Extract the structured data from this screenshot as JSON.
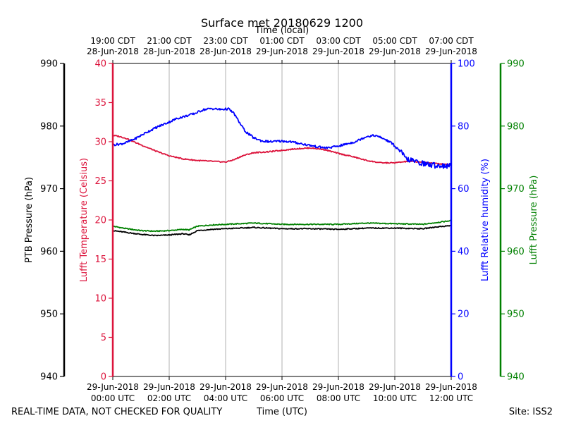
{
  "page": {
    "footer_left": "REAL-TIME DATA, NOT CHECKED FOR QUALITY",
    "footer_center": "Time (UTC)",
    "footer_right": "Site: ISS2"
  },
  "chart_data": {
    "type": "line",
    "title": "Surface met 20180629 1200",
    "top_axis_label": "Time (local)",
    "bottom_axis_label": "Time (UTC)",
    "xlim_hours": [
      0,
      12
    ],
    "x_ticks": [
      {
        "utc_line1": "29-Jun-2018",
        "utc_line2": "00:00 UTC",
        "local_line1": "19:00 CDT",
        "local_line2": "28-Jun-2018"
      },
      {
        "utc_line1": "29-Jun-2018",
        "utc_line2": "02:00 UTC",
        "local_line1": "21:00 CDT",
        "local_line2": "28-Jun-2018"
      },
      {
        "utc_line1": "29-Jun-2018",
        "utc_line2": "04:00 UTC",
        "local_line1": "23:00 CDT",
        "local_line2": "28-Jun-2018"
      },
      {
        "utc_line1": "29-Jun-2018",
        "utc_line2": "06:00 UTC",
        "local_line1": "01:00 CDT",
        "local_line2": "29-Jun-2018"
      },
      {
        "utc_line1": "29-Jun-2018",
        "utc_line2": "08:00 UTC",
        "local_line1": "03:00 CDT",
        "local_line2": "29-Jun-2018"
      },
      {
        "utc_line1": "29-Jun-2018",
        "utc_line2": "10:00 UTC",
        "local_line1": "05:00 CDT",
        "local_line2": "29-Jun-2018"
      },
      {
        "utc_line1": "29-Jun-2018",
        "utc_line2": "12:00 UTC",
        "local_line1": "07:00 CDT",
        "local_line2": "29-Jun-2018"
      }
    ],
    "axes": {
      "ptb_pressure": {
        "label": "PTB Pressure (hPa)",
        "color": "#000000",
        "ylim": [
          940,
          990
        ],
        "ticks": [
          "940",
          "950",
          "960",
          "970",
          "980",
          "990"
        ]
      },
      "temperature": {
        "label": "Lufft Temperature (Celsius)",
        "color": "#dc143c",
        "ylim": [
          0,
          40
        ],
        "ticks": [
          "0",
          "5",
          "10",
          "15",
          "20",
          "25",
          "30",
          "35",
          "40"
        ]
      },
      "humidity": {
        "label": "Lufft Relative humidity (%)",
        "color": "#0000ff",
        "ylim": [
          0,
          100
        ],
        "ticks": [
          "0",
          "20",
          "40",
          "60",
          "80",
          "100"
        ]
      },
      "lufft_pressure": {
        "label": "Lufft Pressure (hPa)",
        "color": "#008000",
        "ylim": [
          940,
          990
        ],
        "ticks": [
          "940",
          "950",
          "960",
          "970",
          "980",
          "990"
        ]
      }
    },
    "series": [
      {
        "name": "Lufft Temperature",
        "axis": "temperature",
        "color": "#dc143c",
        "x": [
          0,
          0.2,
          0.5,
          0.8,
          1.2,
          1.6,
          2.0,
          2.5,
          3.0,
          3.5,
          4.0,
          4.3,
          4.6,
          5.0,
          5.5,
          6.0,
          6.5,
          7.0,
          7.5,
          8.0,
          8.5,
          9.0,
          9.5,
          10.0,
          10.5,
          11.0,
          11.5,
          12.0
        ],
        "y": [
          30.8,
          30.7,
          30.4,
          29.9,
          29.3,
          28.7,
          28.2,
          27.8,
          27.6,
          27.5,
          27.4,
          27.7,
          28.2,
          28.6,
          28.7,
          28.9,
          29.1,
          29.2,
          29.0,
          28.5,
          28.1,
          27.6,
          27.3,
          27.3,
          27.5,
          27.4,
          27.2,
          27.1
        ]
      },
      {
        "name": "Lufft Relative humidity",
        "axis": "humidity",
        "color": "#0000ff",
        "x": [
          0,
          0.3,
          0.5,
          0.8,
          1.2,
          1.6,
          2.0,
          2.3,
          2.6,
          2.9,
          3.2,
          3.5,
          3.8,
          4.1,
          4.3,
          4.5,
          4.7,
          5.0,
          5.3,
          5.6,
          6.0,
          6.3,
          6.6,
          7.0,
          7.3,
          7.6,
          8.0,
          8.3,
          8.6,
          9.0,
          9.3,
          9.6,
          9.9,
          10.2,
          10.4,
          10.7,
          11.0,
          11.3,
          11.6,
          12.0
        ],
        "y": [
          74.0,
          74.3,
          74.8,
          76.0,
          78.0,
          79.8,
          81.3,
          82.5,
          83.2,
          84.0,
          85.2,
          85.6,
          85.3,
          85.5,
          84.0,
          81.0,
          78.3,
          76.2,
          75.2,
          75.0,
          75.2,
          75.0,
          74.5,
          73.8,
          73.3,
          73.0,
          73.6,
          74.3,
          75.0,
          76.7,
          77.0,
          76.0,
          74.5,
          71.8,
          69.5,
          68.7,
          68.1,
          67.5,
          67.4,
          67.2
        ]
      },
      {
        "name": "PTB Pressure",
        "axis": "ptb_pressure",
        "color": "#000000",
        "x": [
          0,
          0.5,
          1.0,
          1.5,
          2.0,
          2.5,
          2.7,
          3.0,
          3.5,
          4.0,
          5.0,
          6.0,
          7.0,
          8.0,
          9.0,
          10.0,
          11.0,
          11.5,
          12.0
        ],
        "y": [
          963.3,
          963.0,
          962.7,
          962.5,
          962.6,
          962.8,
          962.6,
          963.3,
          963.5,
          963.6,
          963.8,
          963.6,
          963.6,
          963.5,
          963.7,
          963.7,
          963.6,
          963.9,
          964.1
        ]
      },
      {
        "name": "Lufft Pressure",
        "axis": "lufft_pressure",
        "color": "#008000",
        "x": [
          0,
          0.5,
          1.0,
          1.5,
          2.0,
          2.5,
          2.7,
          3.0,
          3.5,
          4.0,
          5.0,
          6.0,
          7.0,
          8.0,
          9.0,
          10.0,
          11.0,
          11.5,
          12.0
        ],
        "y": [
          964.0,
          963.6,
          963.3,
          963.2,
          963.3,
          963.5,
          963.4,
          964.0,
          964.2,
          964.3,
          964.5,
          964.3,
          964.3,
          964.3,
          964.5,
          964.4,
          964.3,
          964.6,
          964.9
        ]
      }
    ]
  }
}
